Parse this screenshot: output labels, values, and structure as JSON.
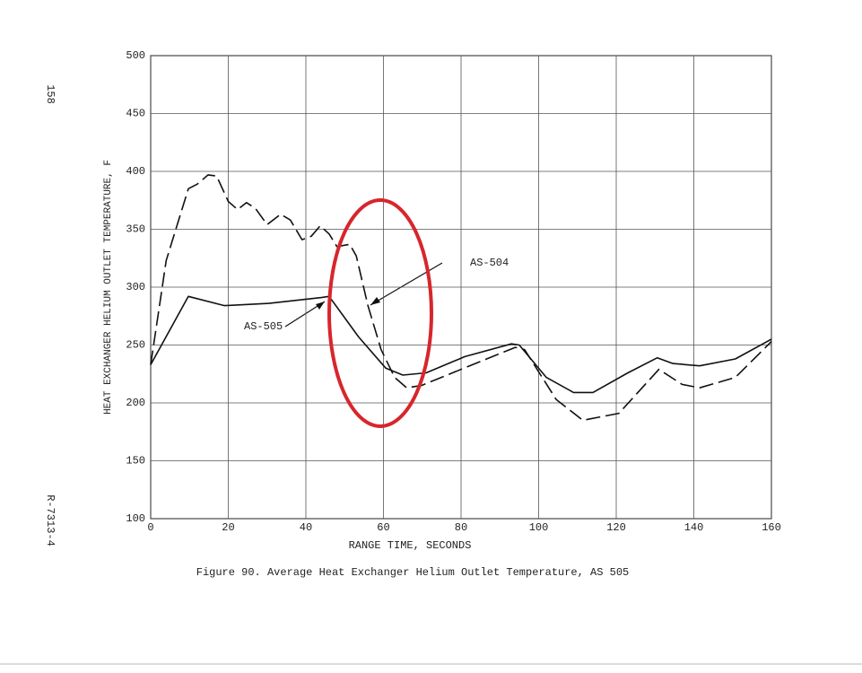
{
  "page_number": "158",
  "report_number": "R-7313-4",
  "chart_data": {
    "type": "line",
    "caption": "Figure 90.  Average Heat Exchanger Helium Outlet Temperature, AS 505",
    "x_label": "RANGE TIME, SECONDS",
    "y_label": "HEAT EXCHANGER HELIUM OUTLET TEMPERATURE, F",
    "xlim": [
      0,
      160
    ],
    "ylim": [
      100,
      500
    ],
    "xticks": [
      0,
      20,
      40,
      60,
      80,
      100,
      120,
      140,
      160
    ],
    "yticks": [
      100,
      150,
      200,
      250,
      300,
      350,
      400,
      450,
      500
    ],
    "grid": true,
    "series": [
      {
        "name": "AS-504",
        "color": "#111111",
        "dashed": true,
        "x": [
          0,
          4,
          9.7,
          12,
          14.8,
          17,
          20,
          22.4,
          24.7,
          27,
          30,
          33.5,
          36,
          39,
          41.4,
          43.7,
          46,
          48,
          51.3,
          53,
          56,
          59.4,
          62.9,
          66,
          69.8,
          83.7,
          94,
          96.4,
          104.5,
          111.4,
          120.7,
          131,
          137,
          141.5,
          150.7,
          160
        ],
        "values": [
          233,
          323,
          385,
          389,
          397,
          396,
          374,
          367,
          373,
          368,
          354,
          363,
          358,
          341,
          344,
          353,
          346,
          335,
          337,
          327,
          284,
          246,
          222,
          213,
          215,
          234,
          248,
          246,
          203,
          185,
          191,
          229,
          216,
          213,
          222,
          253
        ]
      },
      {
        "name": "AS-505",
        "color": "#111111",
        "dashed": false,
        "x": [
          0,
          9.7,
          19,
          30.5,
          44,
          46,
          53.6,
          60.6,
          65,
          71,
          81,
          93,
          95,
          102,
          109,
          114,
          123,
          130.6,
          134.6,
          141.5,
          150.7,
          160
        ],
        "values": [
          233,
          292,
          284,
          286,
          291,
          292,
          257,
          230,
          224,
          226,
          240,
          251,
          250,
          222,
          209,
          209,
          226,
          239,
          234,
          232,
          238,
          255
        ]
      }
    ]
  }
}
